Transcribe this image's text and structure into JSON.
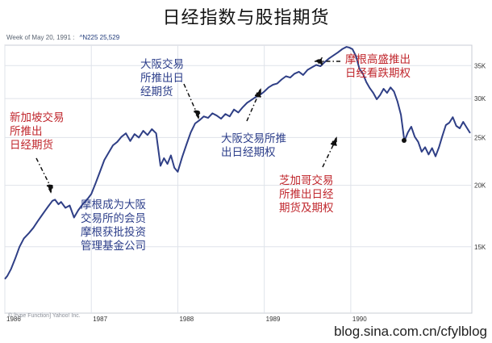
{
  "title": "日经指数与股指期货",
  "header": {
    "week": "Week of May 20, 1991 :",
    "symbol": "^N225 25,529"
  },
  "footer": "© [type Function] Yahoo! Inc.",
  "watermark": "blog.sina.com.cn/cfylblog",
  "colors": {
    "line": "#2f3f86",
    "grid": "#dfe3ea",
    "red_text": "#c0272d",
    "blue_text": "#2c3e8a"
  },
  "annotations": [
    {
      "text": "新加坡交易\n所推出\n日经期货",
      "color": "red"
    },
    {
      "text": "摩根成为大阪\n交易所的会员\n摩根获批投资\n管理基金公司",
      "color": "blue"
    },
    {
      "text": "大阪交易\n所推出日\n经期货",
      "color": "blue"
    },
    {
      "text": "大阪交易所推\n出日经期权",
      "color": "blue"
    },
    {
      "text": "摩根高盛推出\n日经看跌期权",
      "color": "red"
    },
    {
      "text": "芝加哥交易\n所推出日经\n期货及期权",
      "color": "red"
    }
  ],
  "chart_data": {
    "type": "line",
    "x_ticks": [
      "1986",
      "1987",
      "1988",
      "1989",
      "1990"
    ],
    "y_ticks": [
      "15K",
      "20K",
      "25K",
      "30K",
      "35K"
    ],
    "ylim": [
      11000,
      38500
    ],
    "xlim": [
      1986.0,
      1991.4
    ],
    "series": [
      {
        "x": [
          1986.0,
          1986.03,
          1986.07,
          1986.12,
          1986.17,
          1986.22,
          1986.28,
          1986.33,
          1986.38,
          1986.43,
          1986.47,
          1986.5,
          1986.55,
          1986.58,
          1986.62,
          1986.65,
          1986.7,
          1986.75,
          1986.8,
          1986.85,
          1986.9,
          1986.95,
          1987.0,
          1987.05,
          1987.1,
          1987.15,
          1987.2,
          1987.25,
          1987.3,
          1987.35,
          1987.4,
          1987.45,
          1987.5,
          1987.55,
          1987.6,
          1987.65,
          1987.7,
          1987.75,
          1987.8,
          1987.84,
          1987.88,
          1987.92,
          1987.96,
          1988.0,
          1988.05,
          1988.1,
          1988.15,
          1988.2,
          1988.25,
          1988.3,
          1988.35,
          1988.4,
          1988.45,
          1988.5,
          1988.55,
          1988.6,
          1988.65,
          1988.7,
          1988.75,
          1988.8,
          1988.85,
          1988.9,
          1988.95,
          1989.0,
          1989.05,
          1989.1,
          1989.15,
          1989.2,
          1989.25,
          1989.3,
          1989.35,
          1989.4,
          1989.45,
          1989.5,
          1989.55,
          1989.6,
          1989.65,
          1989.7,
          1989.75,
          1989.8,
          1989.85,
          1989.9,
          1989.95,
          1989.98,
          1990.02,
          1990.06,
          1990.1,
          1990.14,
          1990.18,
          1990.22,
          1990.26,
          1990.3,
          1990.34,
          1990.38,
          1990.42,
          1990.46,
          1990.5,
          1990.54,
          1990.58,
          1990.62,
          1990.66,
          1990.7,
          1990.74,
          1990.78,
          1990.82,
          1990.86,
          1990.9,
          1990.94,
          1990.98,
          1991.02,
          1991.06,
          1991.1,
          1991.14,
          1991.18,
          1991.22,
          1991.26,
          1991.3,
          1991.34,
          1991.38
        ],
        "y": [
          12900,
          13100,
          13500,
          14200,
          15000,
          15600,
          16000,
          16400,
          16900,
          17400,
          17800,
          18100,
          18600,
          18700,
          18300,
          18500,
          18000,
          18200,
          17200,
          17800,
          18300,
          18700,
          19200,
          20200,
          21300,
          22500,
          23300,
          24100,
          24500,
          25100,
          25500,
          24600,
          25400,
          25000,
          25800,
          25300,
          26000,
          25500,
          21900,
          22700,
          22100,
          23000,
          21700,
          21300,
          22800,
          24200,
          25600,
          26700,
          27100,
          27600,
          27400,
          28000,
          27700,
          27300,
          27900,
          27600,
          28500,
          28100,
          28800,
          29400,
          29800,
          30200,
          30500,
          31000,
          31600,
          32000,
          32200,
          32800,
          33300,
          33100,
          33700,
          34000,
          33500,
          34300,
          34700,
          35100,
          34900,
          35600,
          36200,
          36700,
          37200,
          37800,
          38200,
          38100,
          37800,
          36600,
          34500,
          33700,
          32400,
          31500,
          30800,
          29900,
          30500,
          31400,
          30800,
          31600,
          31000,
          29600,
          27800,
          24600,
          25600,
          26300,
          25100,
          24500,
          23400,
          23900,
          23100,
          23800,
          22900,
          23900,
          25200,
          26500,
          26800,
          27500,
          26400,
          26100,
          26900,
          26200,
          25529
        ]
      }
    ]
  }
}
